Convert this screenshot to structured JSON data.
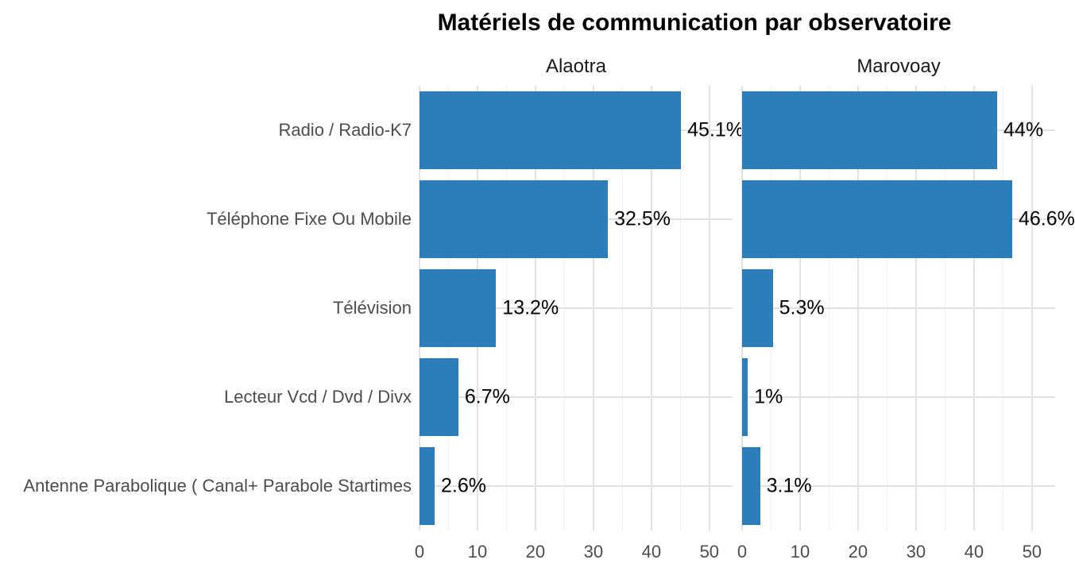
{
  "title": "Matériels de communication par observatoire",
  "colors": {
    "bar": "#2d7dbb",
    "grid_major": "#e2e2e2",
    "grid_minor": "#f0f0f0",
    "axis_text": "#4d4d4d",
    "strip_text": "#1a1a1a",
    "value_label": "#000000",
    "background": "#ffffff"
  },
  "chart_data": {
    "type": "bar",
    "orientation": "horizontal",
    "title": "Matériels de communication par observatoire",
    "facets": [
      "Alaotra",
      "Marovoay"
    ],
    "categories": [
      "Radio / Radio-K7",
      "Téléphone Fixe Ou Mobile",
      "Télévision",
      "Lecteur Vcd / Dvd / Divx",
      "Antenne Parabolique ( Canal+ Parabole Startimes"
    ],
    "series": [
      {
        "name": "Alaotra",
        "values": [
          45.1,
          32.5,
          13.2,
          6.7,
          2.6
        ],
        "labels": [
          "45.1%",
          "32.5%",
          "13.2%",
          "6.7%",
          "2.6%"
        ]
      },
      {
        "name": "Marovoay",
        "values": [
          44,
          46.6,
          5.3,
          1,
          3.1
        ],
        "labels": [
          "44%",
          "46.6%",
          "5.3%",
          "1%",
          "3.1%"
        ]
      }
    ],
    "x_ticks": [
      0,
      10,
      20,
      30,
      40,
      50
    ],
    "x_minor_ticks": [
      5,
      15,
      25,
      35,
      45
    ],
    "xlim": [
      0,
      54
    ],
    "xlabel": "",
    "ylabel": "",
    "grid": true,
    "legend": false
  }
}
